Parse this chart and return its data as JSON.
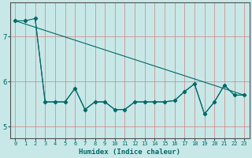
{
  "xlabel": "Humidex (Indice chaleur)",
  "xlim": [
    -0.5,
    23.5
  ],
  "ylim": [
    4.75,
    7.75
  ],
  "yticks": [
    5,
    6,
    7
  ],
  "xticks": [
    0,
    1,
    2,
    3,
    4,
    5,
    6,
    7,
    8,
    9,
    10,
    11,
    12,
    13,
    14,
    15,
    16,
    17,
    18,
    19,
    20,
    21,
    22,
    23
  ],
  "bg_color": "#c8e8e8",
  "grid_color_minor": "#e8b0b0",
  "line_color": "#006868",
  "line1_x": [
    0,
    1,
    2,
    3,
    4,
    5,
    6,
    7,
    8,
    9,
    10,
    11,
    12,
    13,
    14,
    15,
    16,
    17,
    18,
    19,
    20,
    21,
    22,
    23
  ],
  "line1_y": [
    7.35,
    7.35,
    7.4,
    5.55,
    5.55,
    5.55,
    5.85,
    5.38,
    5.55,
    5.55,
    5.38,
    5.38,
    5.55,
    5.55,
    5.55,
    5.55,
    5.58,
    5.78,
    5.95,
    5.28,
    5.55,
    5.92,
    5.7,
    5.7
  ],
  "line2_x": [
    0,
    23
  ],
  "line2_y": [
    7.35,
    5.7
  ],
  "line3_x": [
    2,
    3,
    4,
    5,
    6,
    7,
    8,
    9,
    10,
    11,
    12,
    13,
    14,
    15,
    16,
    17,
    18,
    19,
    20,
    21,
    22,
    23
  ],
  "line3_y": [
    7.4,
    5.55,
    5.55,
    5.55,
    5.85,
    5.38,
    5.55,
    5.55,
    5.38,
    5.38,
    5.55,
    5.55,
    5.55,
    5.55,
    5.58,
    5.78,
    5.95,
    5.28,
    5.55,
    5.92,
    5.7,
    5.7
  ]
}
